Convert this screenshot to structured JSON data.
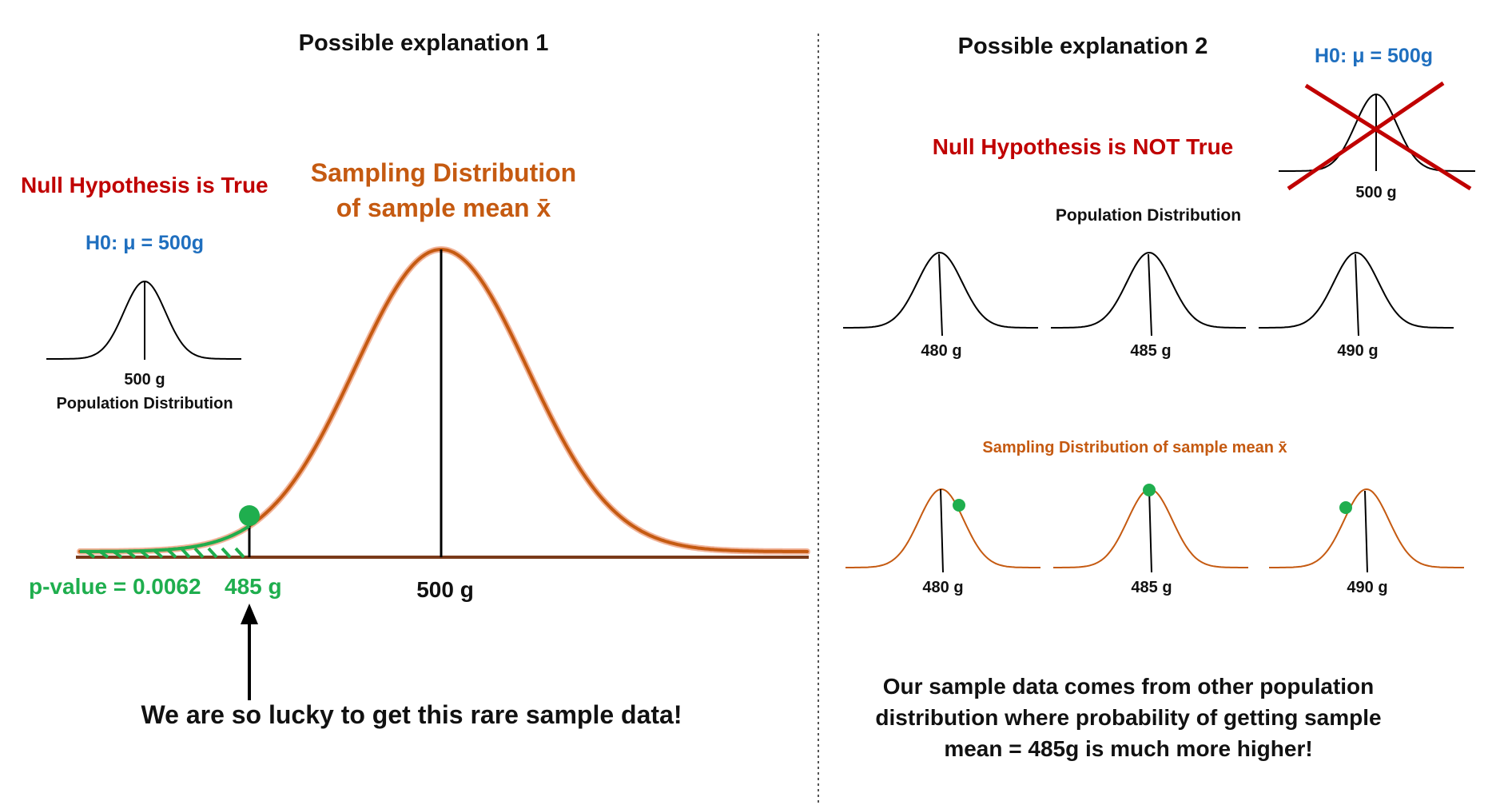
{
  "colors": {
    "red": "#c00000",
    "blue": "#1f6fbf",
    "orange": "#c55a11",
    "green": "#1fae4e",
    "black": "#111111"
  },
  "left": {
    "title": "Possible explanation 1",
    "null_true": "Null Hypothesis is True",
    "h0": "H0: μ = 500g",
    "pop_mean_label": "500 g",
    "pop_label": "Population Distribution",
    "sampling_title_line1": "Sampling Distribution",
    "sampling_title_line2": "of sample mean x̄",
    "sample_mean_label": "500 g",
    "observed_label": "485 g",
    "p_value": "p-value = 0.0062",
    "lucky_text": "We are so lucky to get this rare sample data!"
  },
  "right": {
    "title": "Possible explanation 2",
    "h0": "H0: μ = 500g",
    "crossed_mean_label": "500 g",
    "null_not_true": "Null Hypothesis is NOT True",
    "pop_label": "Population Distribution",
    "pop_means": [
      "480 g",
      "485 g",
      "490 g"
    ],
    "sampling_label": "Sampling Distribution of sample mean x̄",
    "sampling_means": [
      "480 g",
      "485 g",
      "490 g"
    ],
    "conclusion_line1": "Our sample data comes from other population",
    "conclusion_line2": "distribution where probability of getting sample",
    "conclusion_line3": "mean = 485g is much more higher!"
  }
}
